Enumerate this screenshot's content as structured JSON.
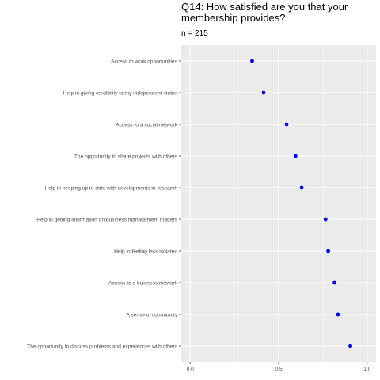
{
  "chart_data": {
    "type": "scatter",
    "title": "Q14: How satisfied are you that your membership provides?",
    "subtitle": "n = 215",
    "xlabel": "",
    "ylabel": "",
    "xlim": [
      0,
      1
    ],
    "x_ticks": [
      "0.0",
      "0.5",
      "1.0"
    ],
    "grid": true,
    "legend": "none",
    "point_color": "#0000ee",
    "panel_color": "#ebebeb",
    "categories": [
      "Access to work opportunities",
      "Help in giving credibility to my independent status",
      "Access to a social network",
      "The opportunity to share projects with others",
      "Help in keeping up to date with developments in research",
      "Help in getting information on business management matters",
      "Help in feeling less isolated",
      "Access to a business network",
      "A sense of community",
      "The opportunity to discuss problems and experiences with others"
    ],
    "values": [
      0.35,
      0.415,
      0.545,
      0.595,
      0.63,
      0.765,
      0.78,
      0.815,
      0.835,
      0.905
    ]
  }
}
